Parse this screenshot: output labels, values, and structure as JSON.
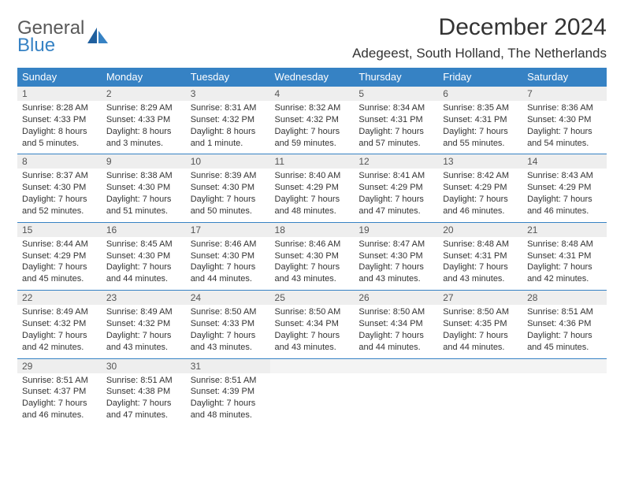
{
  "logo": {
    "general": "General",
    "blue": "Blue"
  },
  "header": {
    "title": "December 2024",
    "location": "Adegeest, South Holland, The Netherlands"
  },
  "colors": {
    "header_bg": "#3682c4",
    "header_fg": "#ffffff",
    "daynum_bg": "#eeeeee",
    "rule": "#3682c4",
    "text": "#333333"
  },
  "style": {
    "title_fontsize": 30,
    "location_fontsize": 17,
    "weekday_fontsize": 13,
    "cell_fontsize": 11
  },
  "weekdays": [
    "Sunday",
    "Monday",
    "Tuesday",
    "Wednesday",
    "Thursday",
    "Friday",
    "Saturday"
  ],
  "days": [
    {
      "n": "1",
      "sunrise": "8:28 AM",
      "sunset": "4:33 PM",
      "daylight": "8 hours and 5 minutes."
    },
    {
      "n": "2",
      "sunrise": "8:29 AM",
      "sunset": "4:33 PM",
      "daylight": "8 hours and 3 minutes."
    },
    {
      "n": "3",
      "sunrise": "8:31 AM",
      "sunset": "4:32 PM",
      "daylight": "8 hours and 1 minute."
    },
    {
      "n": "4",
      "sunrise": "8:32 AM",
      "sunset": "4:32 PM",
      "daylight": "7 hours and 59 minutes."
    },
    {
      "n": "5",
      "sunrise": "8:34 AM",
      "sunset": "4:31 PM",
      "daylight": "7 hours and 57 minutes."
    },
    {
      "n": "6",
      "sunrise": "8:35 AM",
      "sunset": "4:31 PM",
      "daylight": "7 hours and 55 minutes."
    },
    {
      "n": "7",
      "sunrise": "8:36 AM",
      "sunset": "4:30 PM",
      "daylight": "7 hours and 54 minutes."
    },
    {
      "n": "8",
      "sunrise": "8:37 AM",
      "sunset": "4:30 PM",
      "daylight": "7 hours and 52 minutes."
    },
    {
      "n": "9",
      "sunrise": "8:38 AM",
      "sunset": "4:30 PM",
      "daylight": "7 hours and 51 minutes."
    },
    {
      "n": "10",
      "sunrise": "8:39 AM",
      "sunset": "4:30 PM",
      "daylight": "7 hours and 50 minutes."
    },
    {
      "n": "11",
      "sunrise": "8:40 AM",
      "sunset": "4:29 PM",
      "daylight": "7 hours and 48 minutes."
    },
    {
      "n": "12",
      "sunrise": "8:41 AM",
      "sunset": "4:29 PM",
      "daylight": "7 hours and 47 minutes."
    },
    {
      "n": "13",
      "sunrise": "8:42 AM",
      "sunset": "4:29 PM",
      "daylight": "7 hours and 46 minutes."
    },
    {
      "n": "14",
      "sunrise": "8:43 AM",
      "sunset": "4:29 PM",
      "daylight": "7 hours and 46 minutes."
    },
    {
      "n": "15",
      "sunrise": "8:44 AM",
      "sunset": "4:29 PM",
      "daylight": "7 hours and 45 minutes."
    },
    {
      "n": "16",
      "sunrise": "8:45 AM",
      "sunset": "4:30 PM",
      "daylight": "7 hours and 44 minutes."
    },
    {
      "n": "17",
      "sunrise": "8:46 AM",
      "sunset": "4:30 PM",
      "daylight": "7 hours and 44 minutes."
    },
    {
      "n": "18",
      "sunrise": "8:46 AM",
      "sunset": "4:30 PM",
      "daylight": "7 hours and 43 minutes."
    },
    {
      "n": "19",
      "sunrise": "8:47 AM",
      "sunset": "4:30 PM",
      "daylight": "7 hours and 43 minutes."
    },
    {
      "n": "20",
      "sunrise": "8:48 AM",
      "sunset": "4:31 PM",
      "daylight": "7 hours and 43 minutes."
    },
    {
      "n": "21",
      "sunrise": "8:48 AM",
      "sunset": "4:31 PM",
      "daylight": "7 hours and 42 minutes."
    },
    {
      "n": "22",
      "sunrise": "8:49 AM",
      "sunset": "4:32 PM",
      "daylight": "7 hours and 42 minutes."
    },
    {
      "n": "23",
      "sunrise": "8:49 AM",
      "sunset": "4:32 PM",
      "daylight": "7 hours and 43 minutes."
    },
    {
      "n": "24",
      "sunrise": "8:50 AM",
      "sunset": "4:33 PM",
      "daylight": "7 hours and 43 minutes."
    },
    {
      "n": "25",
      "sunrise": "8:50 AM",
      "sunset": "4:34 PM",
      "daylight": "7 hours and 43 minutes."
    },
    {
      "n": "26",
      "sunrise": "8:50 AM",
      "sunset": "4:34 PM",
      "daylight": "7 hours and 44 minutes."
    },
    {
      "n": "27",
      "sunrise": "8:50 AM",
      "sunset": "4:35 PM",
      "daylight": "7 hours and 44 minutes."
    },
    {
      "n": "28",
      "sunrise": "8:51 AM",
      "sunset": "4:36 PM",
      "daylight": "7 hours and 45 minutes."
    },
    {
      "n": "29",
      "sunrise": "8:51 AM",
      "sunset": "4:37 PM",
      "daylight": "7 hours and 46 minutes."
    },
    {
      "n": "30",
      "sunrise": "8:51 AM",
      "sunset": "4:38 PM",
      "daylight": "7 hours and 47 minutes."
    },
    {
      "n": "31",
      "sunrise": "8:51 AM",
      "sunset": "4:39 PM",
      "daylight": "7 hours and 48 minutes."
    }
  ],
  "labels": {
    "sunrise": "Sunrise: ",
    "sunset": "Sunset: ",
    "daylight": "Daylight: "
  }
}
